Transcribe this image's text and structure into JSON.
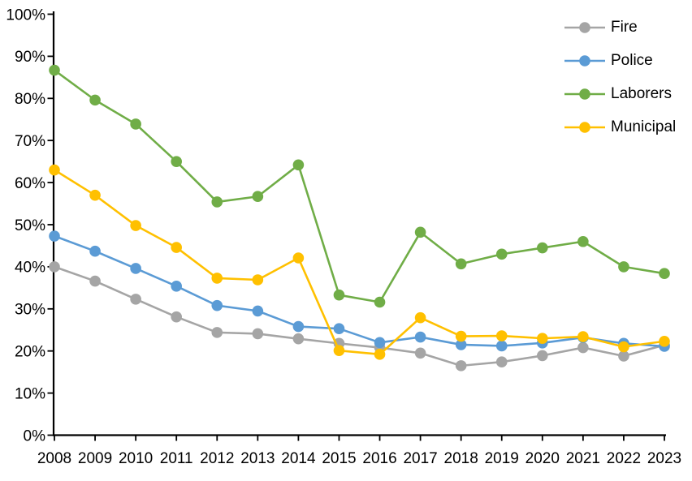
{
  "chart_data": {
    "type": "line",
    "title": "",
    "xlabel": "",
    "ylabel": "",
    "x_labels": [
      "2008",
      "2009",
      "2010",
      "2011",
      "2012",
      "2013",
      "2014",
      "2015",
      "2016",
      "2017",
      "2018",
      "2019",
      "2020",
      "2021",
      "2022",
      "2023"
    ],
    "y_tick_labels": [
      "0%",
      "10%",
      "20%",
      "30%",
      "40%",
      "50%",
      "60%",
      "70%",
      "80%",
      "90%",
      "100%"
    ],
    "ylim": [
      0,
      100
    ],
    "y_tick_step": 10,
    "grid": false,
    "legend_position": "top-right",
    "axis_color": "#000000",
    "background_color": "#FFFFFF",
    "series": [
      {
        "name": "Fire",
        "color": "#A5A5A5",
        "values": [
          40.0,
          36.6,
          32.3,
          28.1,
          24.4,
          24.1,
          22.9,
          21.8,
          20.8,
          19.5,
          16.5,
          17.4,
          18.9,
          20.8,
          18.8,
          21.4
        ]
      },
      {
        "name": "Police",
        "color": "#5B9BD5",
        "values": [
          47.3,
          43.7,
          39.6,
          35.4,
          30.8,
          29.5,
          25.8,
          25.3,
          22.0,
          23.3,
          21.5,
          21.2,
          21.9,
          23.2,
          21.8,
          21.1
        ]
      },
      {
        "name": "Laborers",
        "color": "#70AD47",
        "values": [
          86.7,
          79.6,
          73.9,
          65.0,
          55.4,
          56.7,
          64.2,
          33.3,
          31.6,
          48.2,
          40.7,
          43.0,
          44.5,
          46.0,
          40.0,
          38.4
        ]
      },
      {
        "name": "Municipal",
        "color": "#FFC000",
        "values": [
          63.0,
          57.0,
          49.8,
          44.6,
          37.3,
          36.9,
          42.1,
          20.1,
          19.2,
          27.9,
          23.5,
          23.6,
          23.0,
          23.4,
          21.0,
          22.3
        ]
      }
    ]
  }
}
